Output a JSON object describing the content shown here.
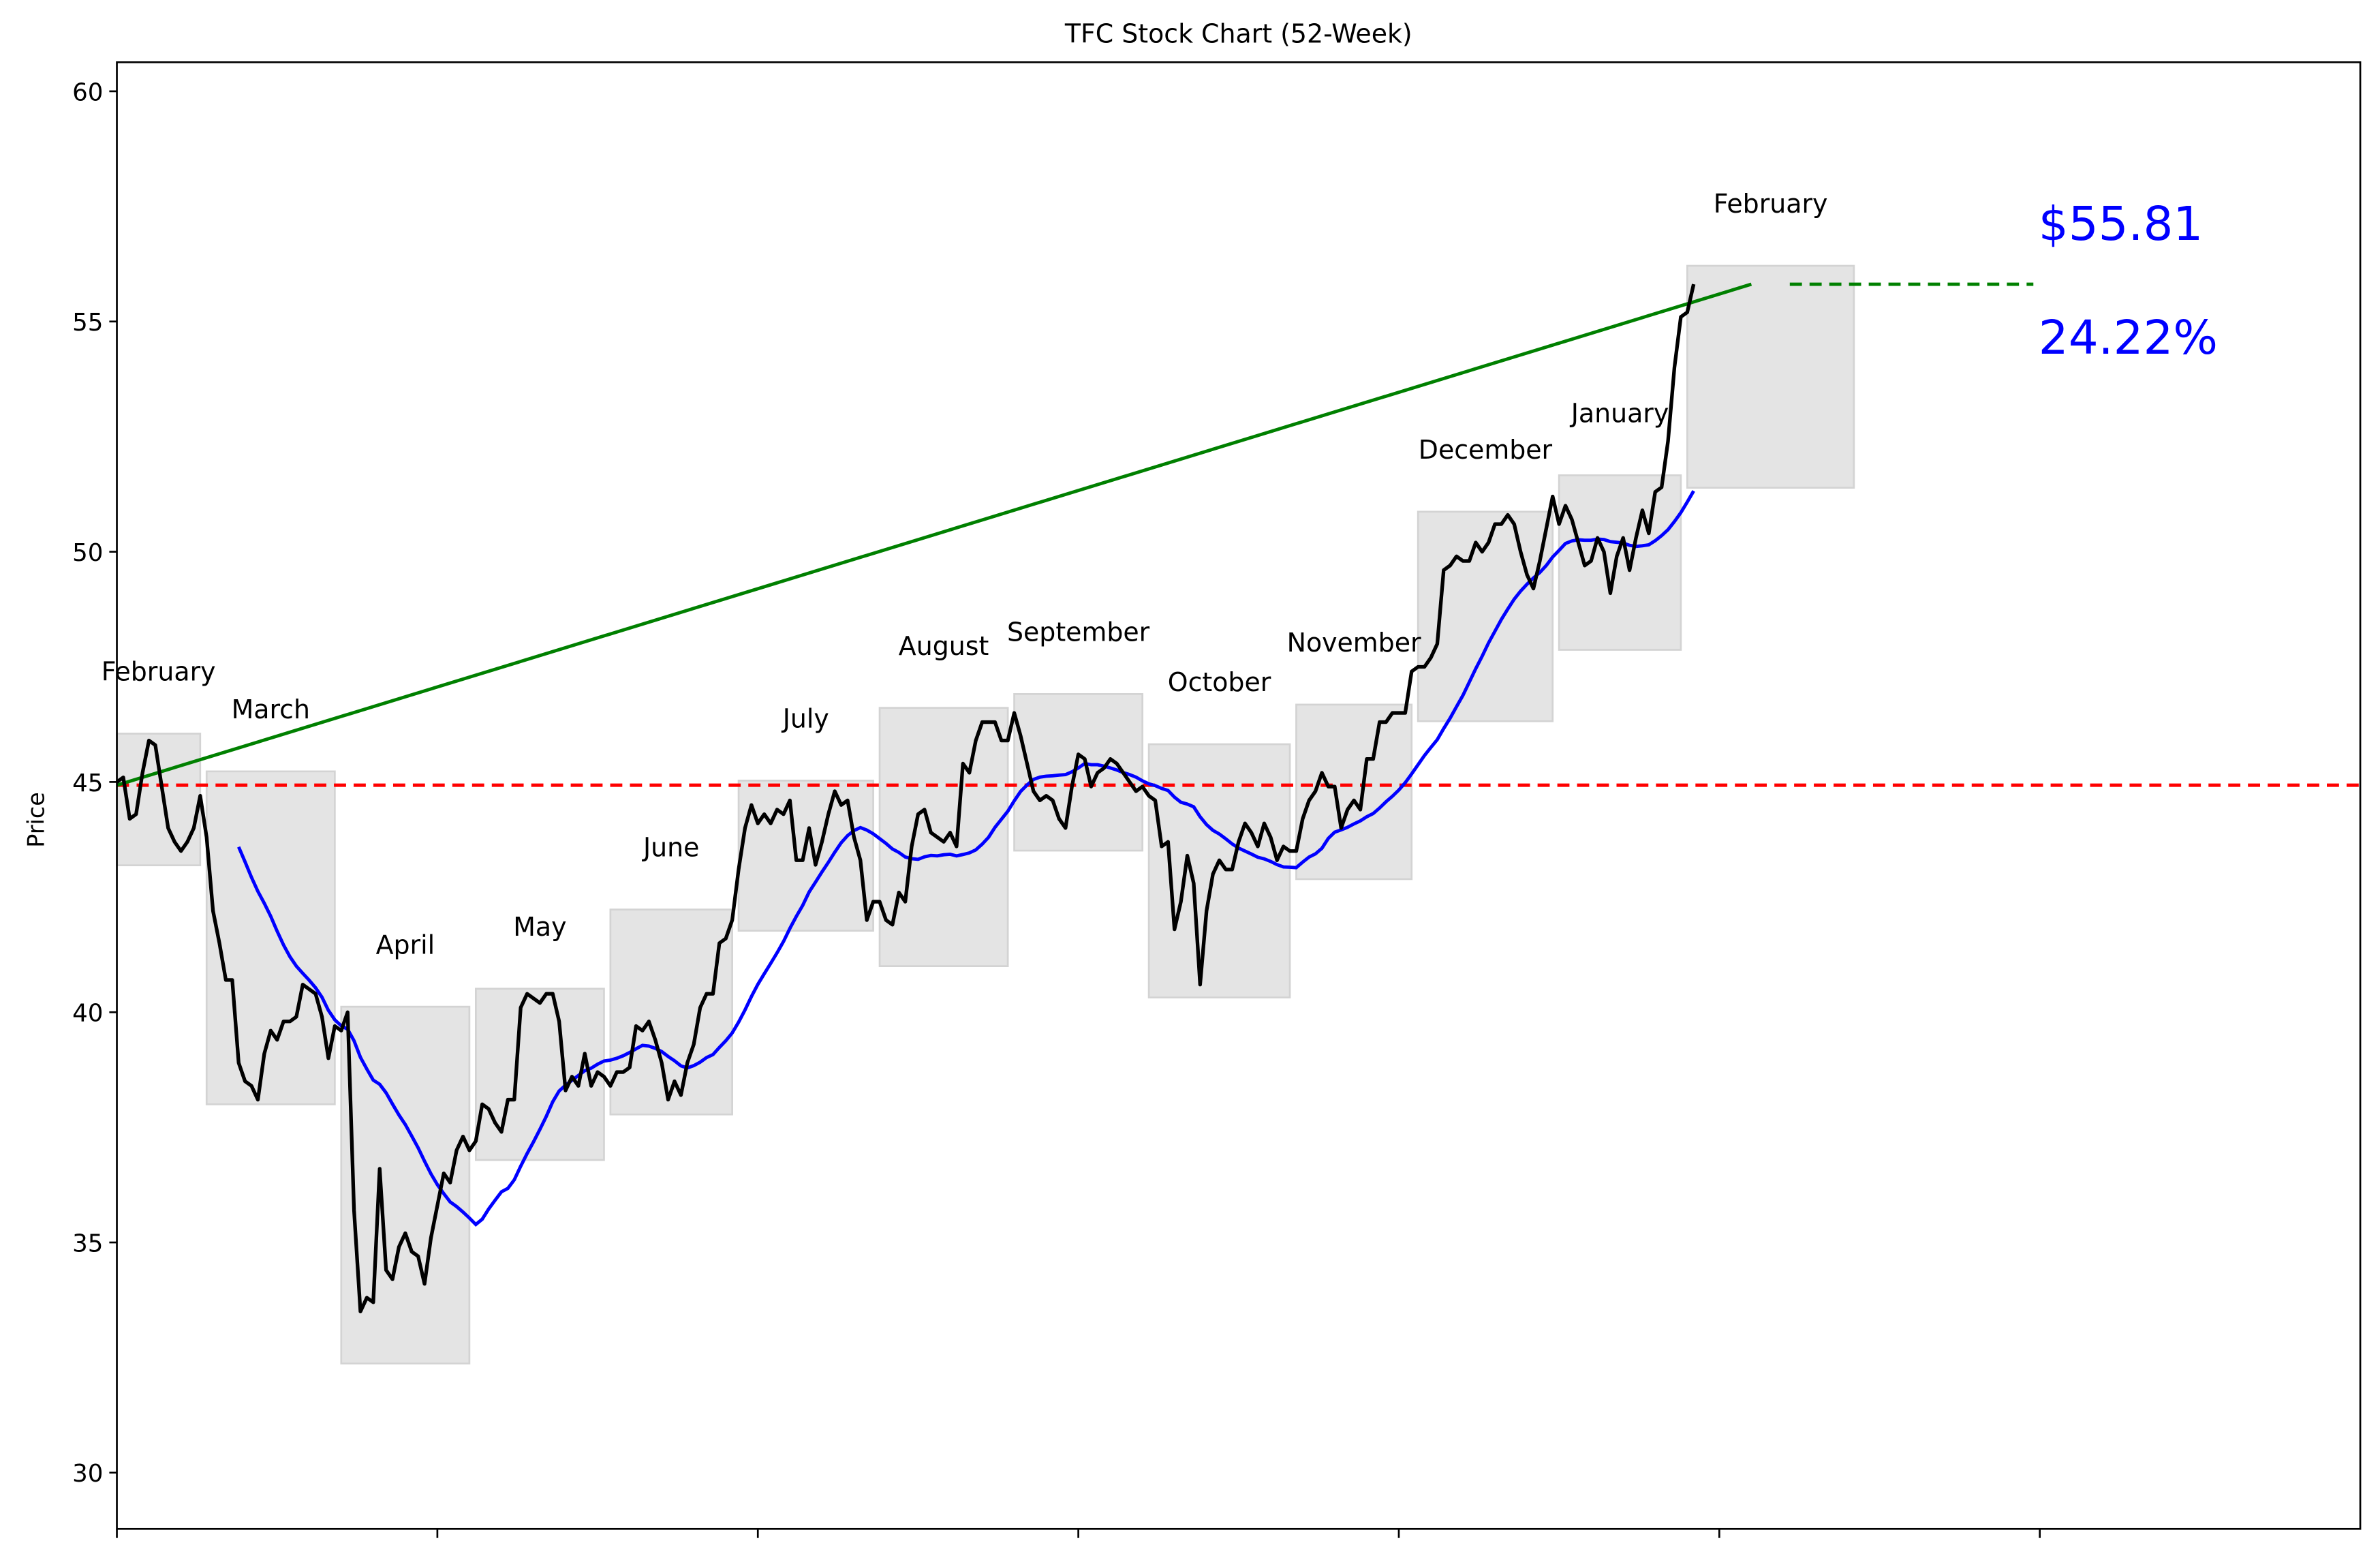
{
  "chart_data": {
    "type": "line",
    "title": "TFC Stock Chart (52-Week)",
    "xlabel": "",
    "ylabel": "Price",
    "xlim": [
      0,
      350
    ],
    "ylim": [
      28.78,
      60.63
    ],
    "x_ticks": [
      0,
      50,
      100,
      150,
      200,
      250,
      300
    ],
    "x_tick_labels_shown": false,
    "y_ticks": [
      30,
      35,
      40,
      45,
      50,
      55,
      60
    ],
    "y_tick_labels": [
      "30",
      "35",
      "40",
      "45",
      "50",
      "55",
      "60"
    ],
    "grid": false,
    "colors": {
      "price": "#000000",
      "moving_average": "#0000ff",
      "trend": "#008000",
      "baseline": "#ff0000",
      "month_box": "#d3d3d3",
      "annotation": "#0000ff"
    },
    "price": [
      45.0,
      45.1,
      44.2,
      44.3,
      45.2,
      45.9,
      45.8,
      44.9,
      44.0,
      43.7,
      43.5,
      43.7,
      44.0,
      44.7,
      43.8,
      42.2,
      41.5,
      40.7,
      40.7,
      38.9,
      38.5,
      38.4,
      38.1,
      39.1,
      39.6,
      39.4,
      39.8,
      39.8,
      39.9,
      40.6,
      40.5,
      40.4,
      39.9,
      39.0,
      39.7,
      39.6,
      40.0,
      35.7,
      33.5,
      33.8,
      33.7,
      36.6,
      34.4,
      34.2,
      34.9,
      35.2,
      34.8,
      34.7,
      34.1,
      35.1,
      35.8,
      36.5,
      36.3,
      37.0,
      37.3,
      37.0,
      37.2,
      38.0,
      37.9,
      37.6,
      37.4,
      38.1,
      38.1,
      40.1,
      40.4,
      40.3,
      40.2,
      40.4,
      40.4,
      39.8,
      38.3,
      38.6,
      38.4,
      39.1,
      38.4,
      38.7,
      38.6,
      38.4,
      38.7,
      38.7,
      38.8,
      39.7,
      39.6,
      39.8,
      39.4,
      38.9,
      38.1,
      38.5,
      38.2,
      38.9,
      39.3,
      40.1,
      40.4,
      40.4,
      41.5,
      41.6,
      42.0,
      43.1,
      44.0,
      44.5,
      44.1,
      44.3,
      44.1,
      44.4,
      44.3,
      44.6,
      43.3,
      43.3,
      44.0,
      43.2,
      43.7,
      44.3,
      44.8,
      44.5,
      44.6,
      43.8,
      43.3,
      42.0,
      42.4,
      42.4,
      42.0,
      41.9,
      42.6,
      42.4,
      43.6,
      44.3,
      44.4,
      43.9,
      43.8,
      43.7,
      43.9,
      43.6,
      45.4,
      45.2,
      45.9,
      46.3,
      46.3,
      46.3,
      45.9,
      45.9,
      46.5,
      46.0,
      45.4,
      44.8,
      44.6,
      44.7,
      44.6,
      44.2,
      44.0,
      44.9,
      45.6,
      45.5,
      44.9,
      45.2,
      45.3,
      45.5,
      45.4,
      45.2,
      45.0,
      44.8,
      44.9,
      44.7,
      44.6,
      43.6,
      43.7,
      41.8,
      42.4,
      43.4,
      42.8,
      40.6,
      42.2,
      43.0,
      43.3,
      43.1,
      43.1,
      43.7,
      44.1,
      43.9,
      43.6,
      44.1,
      43.8,
      43.3,
      43.6,
      43.5,
      43.5,
      44.2,
      44.6,
      44.8,
      45.2,
      44.9,
      44.9,
      44.0,
      44.4,
      44.6,
      44.4,
      45.5,
      45.5,
      46.3,
      46.3,
      46.5,
      46.5,
      46.5,
      47.4,
      47.5,
      47.5,
      47.7,
      48.0,
      49.6,
      49.7,
      49.9,
      49.8,
      49.8,
      50.2,
      50.0,
      50.2,
      50.6,
      50.6,
      50.8,
      50.6,
      50.0,
      49.5,
      49.2,
      49.8,
      50.5,
      51.2,
      50.6,
      51.0,
      50.7,
      50.2,
      49.7,
      49.8,
      50.3,
      50.0,
      49.1,
      49.9,
      50.3,
      49.6,
      50.3,
      50.9,
      50.4,
      51.3,
      51.4,
      52.4,
      54.0,
      55.1,
      55.2,
      55.81
    ],
    "moving_average_window": 20,
    "baseline_price": 44.93,
    "trend_line": {
      "from": [
        0,
        44.93
      ],
      "to": [
        255,
        55.81
      ]
    },
    "current_price_line": {
      "from_x": 261,
      "to_x": 299,
      "y": 55.81
    },
    "months": [
      {
        "label": "February",
        "start": 0,
        "end": 13,
        "low": 43.19,
        "high": 46.05
      },
      {
        "label": "March",
        "start": 14,
        "end": 34,
        "low": 38.0,
        "high": 45.23
      },
      {
        "label": "April",
        "start": 35,
        "end": 55,
        "low": 32.37,
        "high": 40.12
      },
      {
        "label": "May",
        "start": 56,
        "end": 76,
        "low": 36.79,
        "high": 40.51
      },
      {
        "label": "June",
        "start": 77,
        "end": 96,
        "low": 37.78,
        "high": 42.23
      },
      {
        "label": "July",
        "start": 97,
        "end": 118,
        "low": 41.77,
        "high": 45.03
      },
      {
        "label": "August",
        "start": 119,
        "end": 139,
        "low": 41.0,
        "high": 46.61
      },
      {
        "label": "September",
        "start": 140,
        "end": 160,
        "low": 43.51,
        "high": 46.91
      },
      {
        "label": "October",
        "start": 161,
        "end": 183,
        "low": 40.32,
        "high": 45.82
      },
      {
        "label": "November",
        "start": 184,
        "end": 202,
        "low": 42.89,
        "high": 46.68
      },
      {
        "label": "December",
        "start": 203,
        "end": 224,
        "low": 46.32,
        "high": 50.87
      },
      {
        "label": "January",
        "start": 225,
        "end": 244,
        "low": 47.87,
        "high": 51.66
      },
      {
        "label": "February",
        "start": 245,
        "end": 271,
        "low": 51.39,
        "high": 56.21
      }
    ],
    "annotations": {
      "price": "$55.81",
      "change": "24.22%"
    }
  }
}
